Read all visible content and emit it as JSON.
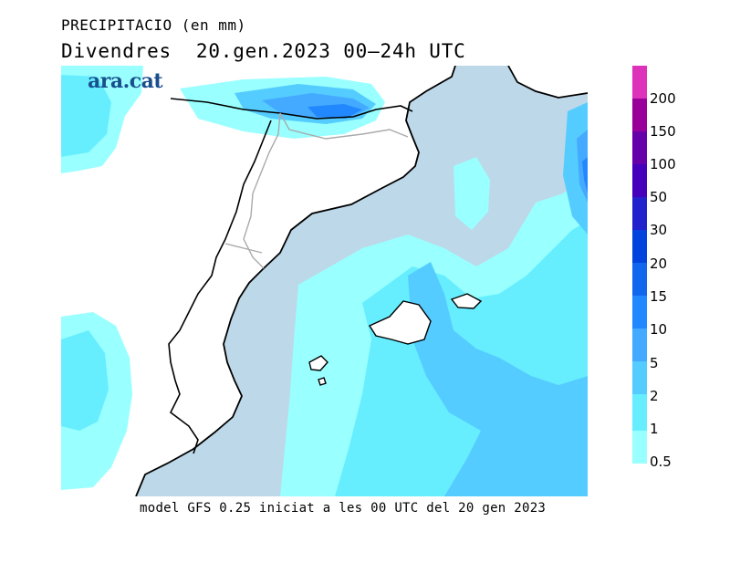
{
  "header": {
    "title": "PRECIPITACIO (en mm)",
    "subtitle": "Divendres  20.gen.2023 00—24h UTC"
  },
  "logo": {
    "text": "ara.cat",
    "color": "#1a4f8e"
  },
  "footer": {
    "text": "model GFS 0.25 iniciat a les 00 UTC del 20 gen 2023"
  },
  "legend": {
    "unit": "mm",
    "levels": [
      "0.5",
      "1",
      "2",
      "5",
      "10",
      "15",
      "20",
      "30",
      "50",
      "100",
      "150",
      "200"
    ],
    "colors": [
      "#99ffff",
      "#66eeff",
      "#55ccff",
      "#44aaff",
      "#2288ff",
      "#1166ee",
      "#0044dd",
      "#2222cc",
      "#4400bb",
      "#6600aa",
      "#990099",
      "#cc00aa",
      "#dd33bb"
    ]
  },
  "colors": {
    "sea": "#bdd8e8",
    "land": "#ffffff",
    "coast": "#000000",
    "border": "#aaaaaa"
  }
}
